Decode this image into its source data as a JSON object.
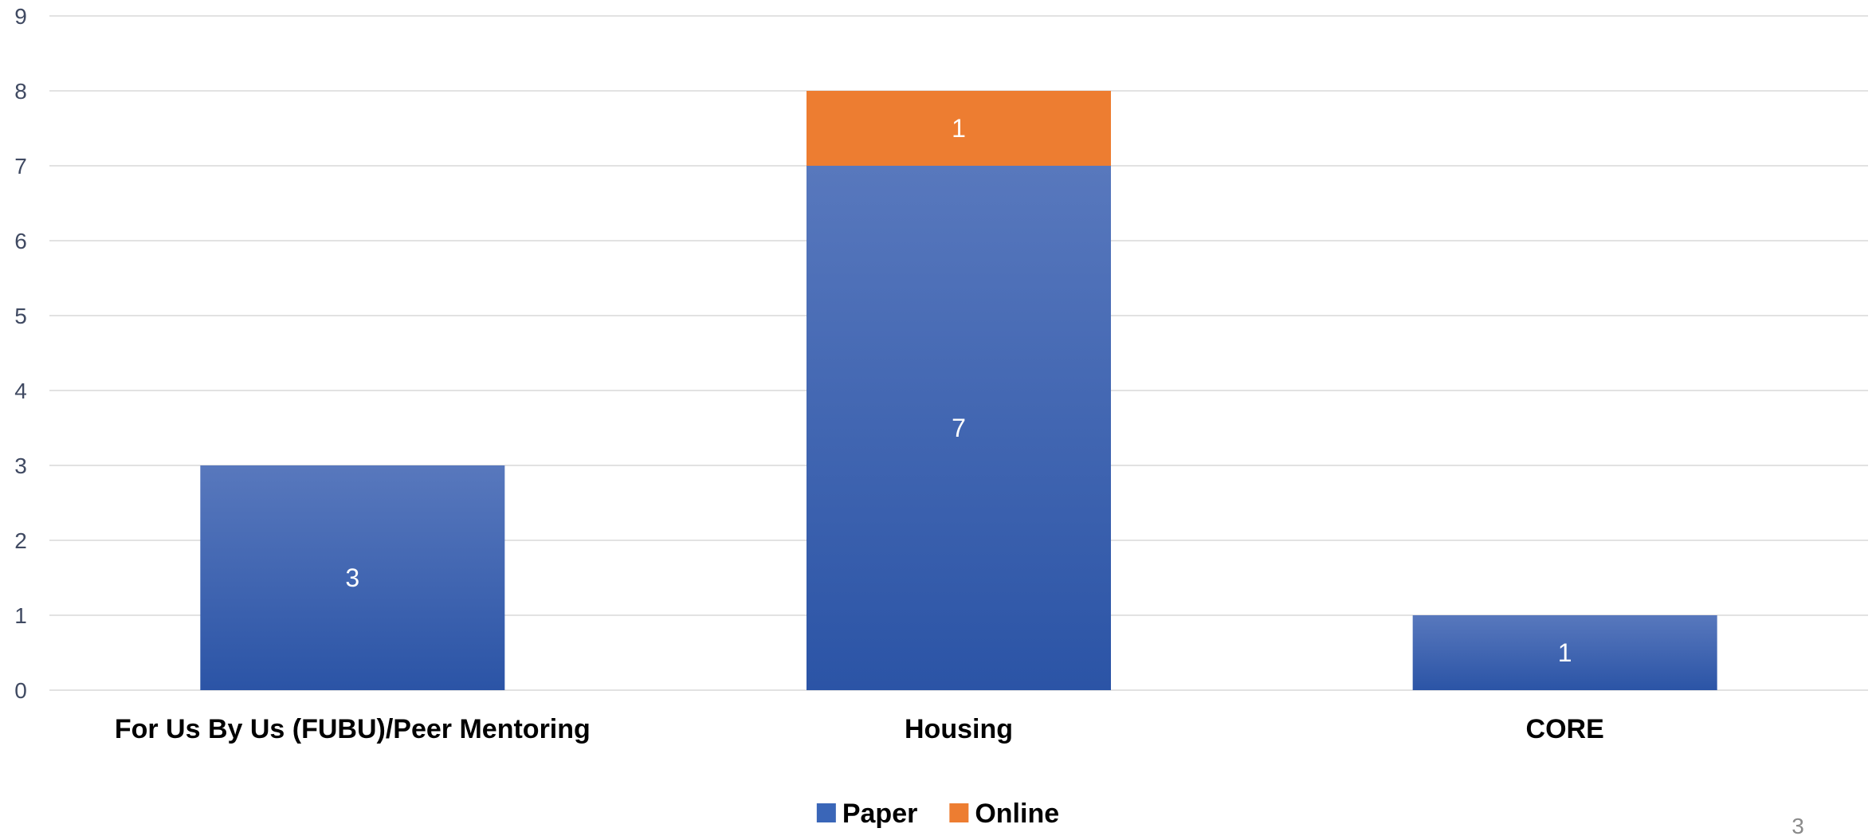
{
  "chart_data": {
    "type": "bar",
    "stacked": true,
    "categories": [
      "For Us By Us (FUBU)/Peer Mentoring",
      "Housing",
      "CORE"
    ],
    "series": [
      {
        "name": "Paper",
        "values": [
          3,
          7,
          1
        ],
        "color": "#3a66b8"
      },
      {
        "name": "Online",
        "values": [
          0,
          1,
          0
        ],
        "color": "#ed7d31"
      }
    ],
    "ylim": [
      0,
      9
    ],
    "yticks": [
      0,
      1,
      2,
      3,
      4,
      5,
      6,
      7,
      8,
      9
    ],
    "grid": true,
    "legend": "bottom-center",
    "data_labels": true
  },
  "page": {
    "number": "3"
  }
}
